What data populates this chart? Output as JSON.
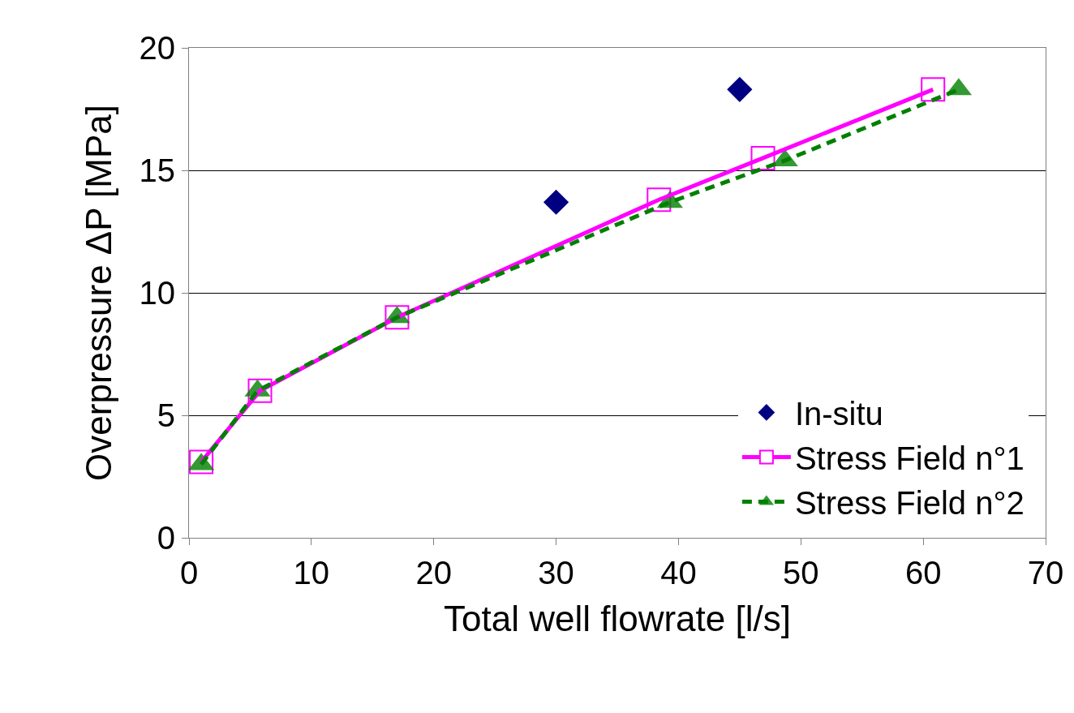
{
  "chart_data": {
    "type": "line",
    "xlabel": "Total well flowrate [l/s]",
    "ylabel": "Overpressure ΔP [MPa]",
    "xlim": [
      0,
      70
    ],
    "xticks": [
      0,
      10,
      20,
      30,
      40,
      50,
      60,
      70
    ],
    "ylim": [
      0,
      20
    ],
    "yticks": [
      0,
      5,
      10,
      15,
      20
    ],
    "grid": "y",
    "legend": "bottom right",
    "series": [
      {
        "name": "In-situ",
        "type": "scatter",
        "color": "#000080",
        "marker": "diamond",
        "x": [
          30,
          45
        ],
        "values": [
          13.7,
          18.3
        ]
      },
      {
        "name": "Stress Field n°1",
        "type": "line",
        "color": "#ff00ff",
        "marker": "square",
        "line_style": "solid",
        "x": [
          1,
          5.8,
          17,
          38.4,
          46.9,
          60.8
        ],
        "values": [
          3.1,
          6,
          9,
          13.8,
          15.5,
          18.3
        ]
      },
      {
        "name": "Stress Field n°2",
        "type": "line",
        "color": "#008000",
        "marker": "triangle",
        "line_style": "dashed",
        "x": [
          1,
          5.6,
          17,
          39.3,
          48.7,
          62.9
        ],
        "values": [
          3,
          6,
          9,
          13.7,
          15.4,
          18.3
        ]
      }
    ]
  }
}
